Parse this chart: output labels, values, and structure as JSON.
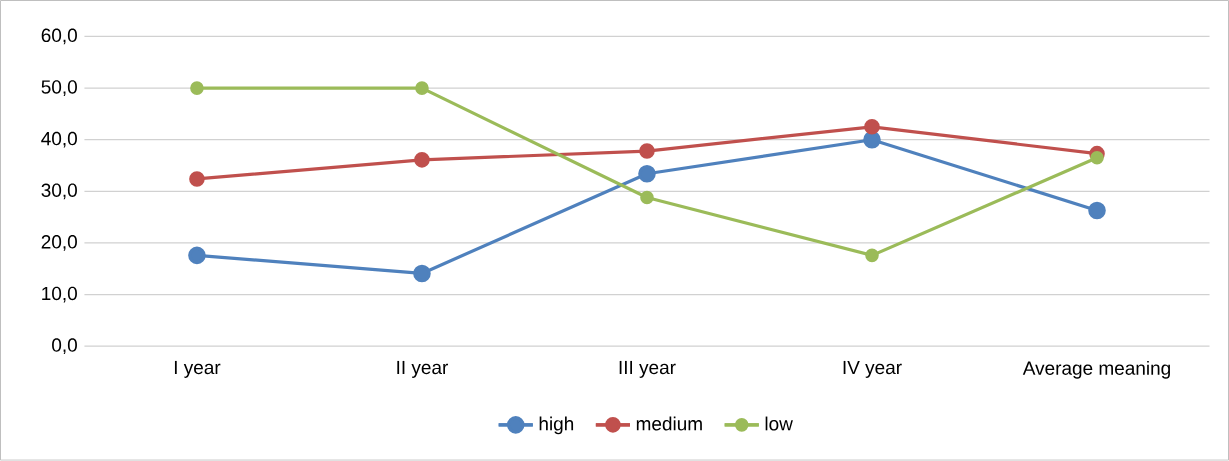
{
  "chart_data": {
    "type": "line",
    "categories": [
      "I year",
      "II year",
      "III year",
      "IV year",
      "Average meaning"
    ],
    "series": [
      {
        "name": "high",
        "color": "#4f81bd",
        "values": [
          17.6,
          14.1,
          33.4,
          40.0,
          26.3
        ]
      },
      {
        "name": "medium",
        "color": "#c0504d",
        "values": [
          32.4,
          36.1,
          37.8,
          42.5,
          37.3
        ]
      },
      {
        "name": "low",
        "color": "#9bbb59",
        "values": [
          50.0,
          50.0,
          28.8,
          17.6,
          36.5
        ]
      }
    ],
    "ylim": [
      0,
      60
    ],
    "yticks": [
      {
        "value": 0,
        "label": "0,0"
      },
      {
        "value": 10,
        "label": "10,0"
      },
      {
        "value": 20,
        "label": "20,0"
      },
      {
        "value": 30,
        "label": "30,0"
      },
      {
        "value": 40,
        "label": "40,0"
      },
      {
        "value": 50,
        "label": "50,0"
      },
      {
        "value": 60,
        "label": "60,0"
      }
    ],
    "grid": "y",
    "legend": "bottom",
    "marker": "circle",
    "line_style": "solid"
  }
}
